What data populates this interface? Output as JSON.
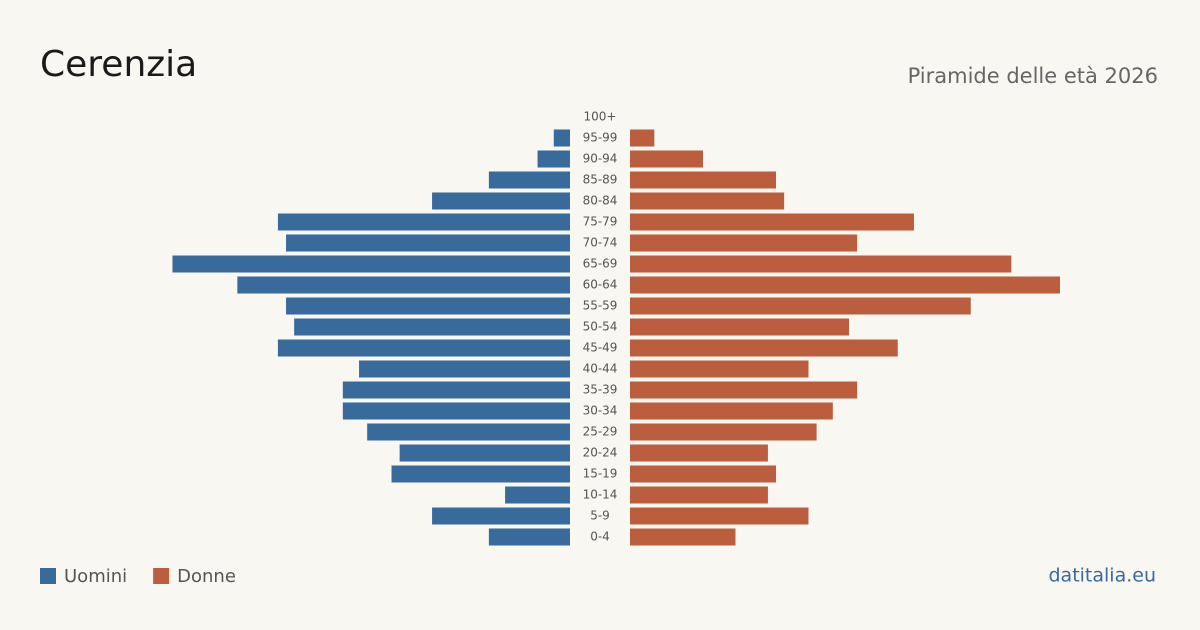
{
  "chart_data": {
    "type": "pyramid",
    "title": "Cerenzia",
    "subtitle": "Piramide delle età 2026",
    "source": "datitalia.eu",
    "categories": [
      "100+",
      "95-99",
      "90-94",
      "85-89",
      "80-84",
      "75-79",
      "70-74",
      "65-69",
      "60-64",
      "55-59",
      "50-54",
      "45-49",
      "40-44",
      "35-39",
      "30-34",
      "25-29",
      "20-24",
      "15-19",
      "10-14",
      "5-9",
      "0-4"
    ],
    "series": [
      {
        "name": "Uomini",
        "color": "#386a9c",
        "values": [
          0,
          2,
          4,
          10,
          17,
          36,
          35,
          49,
          41,
          35,
          34,
          36,
          26,
          28,
          28,
          25,
          21,
          22,
          8,
          17,
          10
        ]
      },
      {
        "name": "Donne",
        "color": "#bb5e3e",
        "values": [
          0,
          3,
          9,
          18,
          19,
          35,
          28,
          47,
          53,
          42,
          27,
          33,
          22,
          28,
          25,
          23,
          17,
          18,
          17,
          22,
          13
        ]
      }
    ]
  }
}
